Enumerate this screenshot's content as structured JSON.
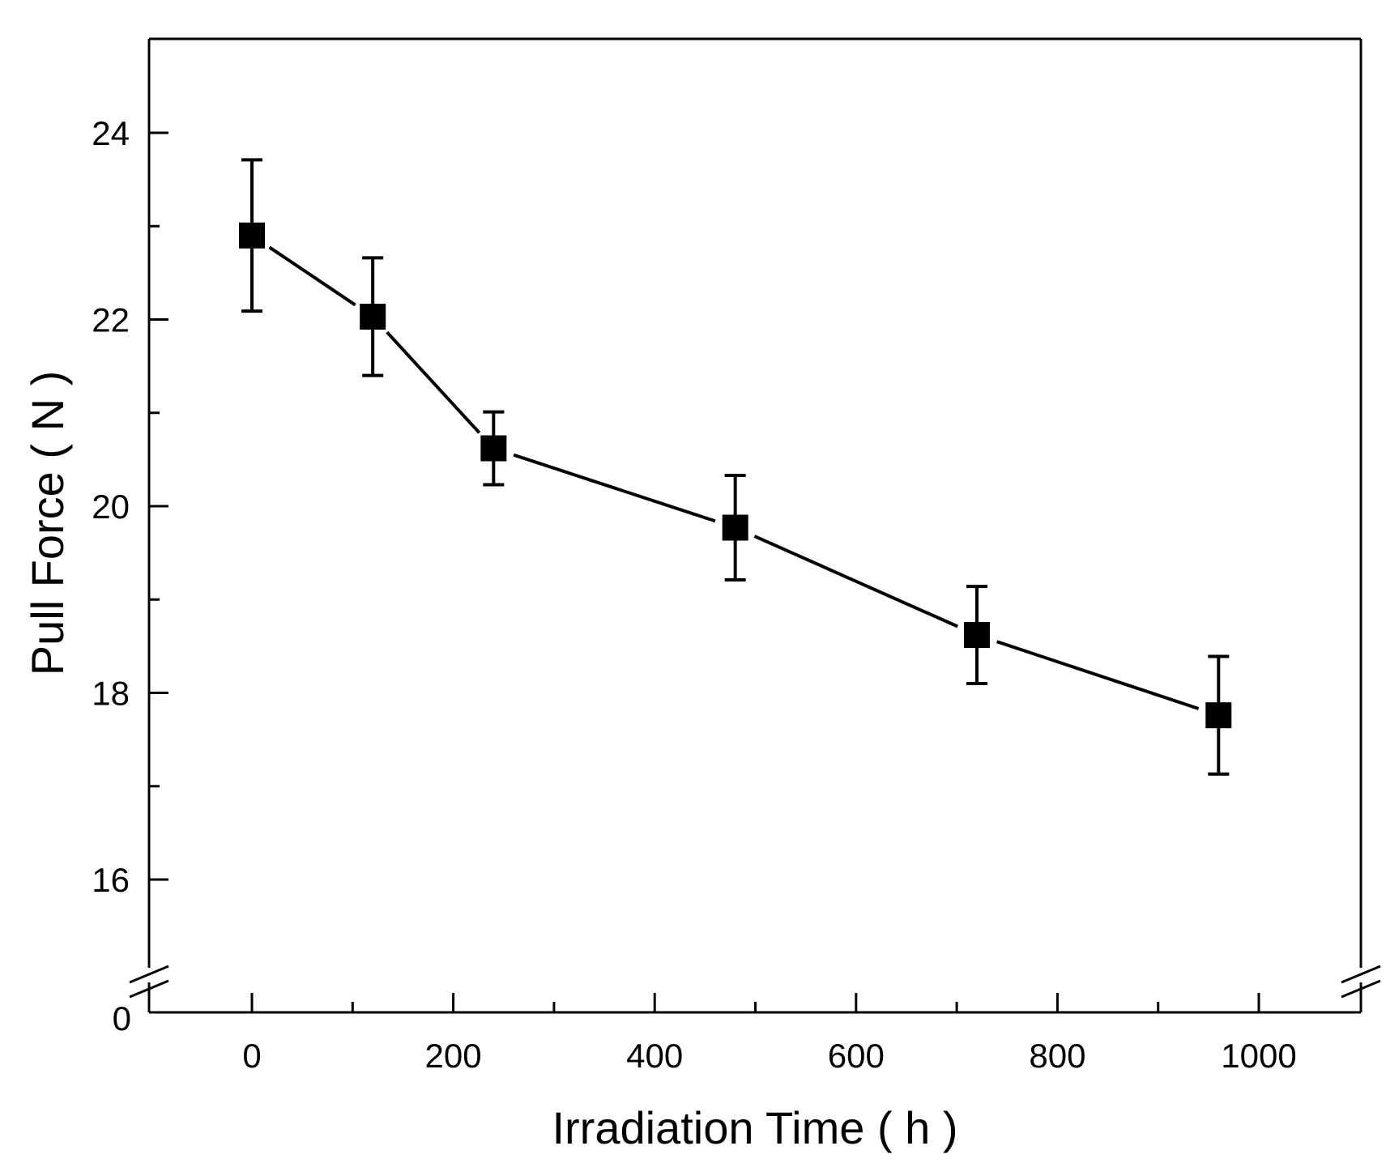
{
  "chart_data": {
    "type": "line",
    "title": "",
    "xlabel": "Irradiation Time ( h )",
    "ylabel": "Pull Force ( N )",
    "xlim": [
      -100,
      1100
    ],
    "ylim_upper_segment": [
      15,
      25
    ],
    "y_axis_break": true,
    "y_axis_below_break_label": "0",
    "x_ticks": [
      0,
      200,
      400,
      600,
      800,
      1000
    ],
    "x_tick_labels": [
      "0",
      "200",
      "400",
      "600",
      "800",
      "1000"
    ],
    "x_minor_ticks": [
      100,
      300,
      500,
      700,
      900
    ],
    "y_ticks": [
      16,
      18,
      20,
      22,
      24
    ],
    "y_tick_labels": [
      "16",
      "18",
      "20",
      "22",
      "24"
    ],
    "y_minor_ticks": [
      17,
      19,
      21,
      23
    ],
    "marker": "square",
    "color": "#000000",
    "series": [
      {
        "name": "Pull Force",
        "x": [
          0,
          120,
          240,
          480,
          720,
          960
        ],
        "y": [
          22.9,
          22.03,
          20.62,
          19.77,
          18.62,
          17.76
        ],
        "err_low": [
          0.81,
          0.63,
          0.39,
          0.56,
          0.52,
          0.63
        ],
        "err_high": [
          0.81,
          0.63,
          0.39,
          0.56,
          0.52,
          0.63
        ]
      }
    ]
  }
}
